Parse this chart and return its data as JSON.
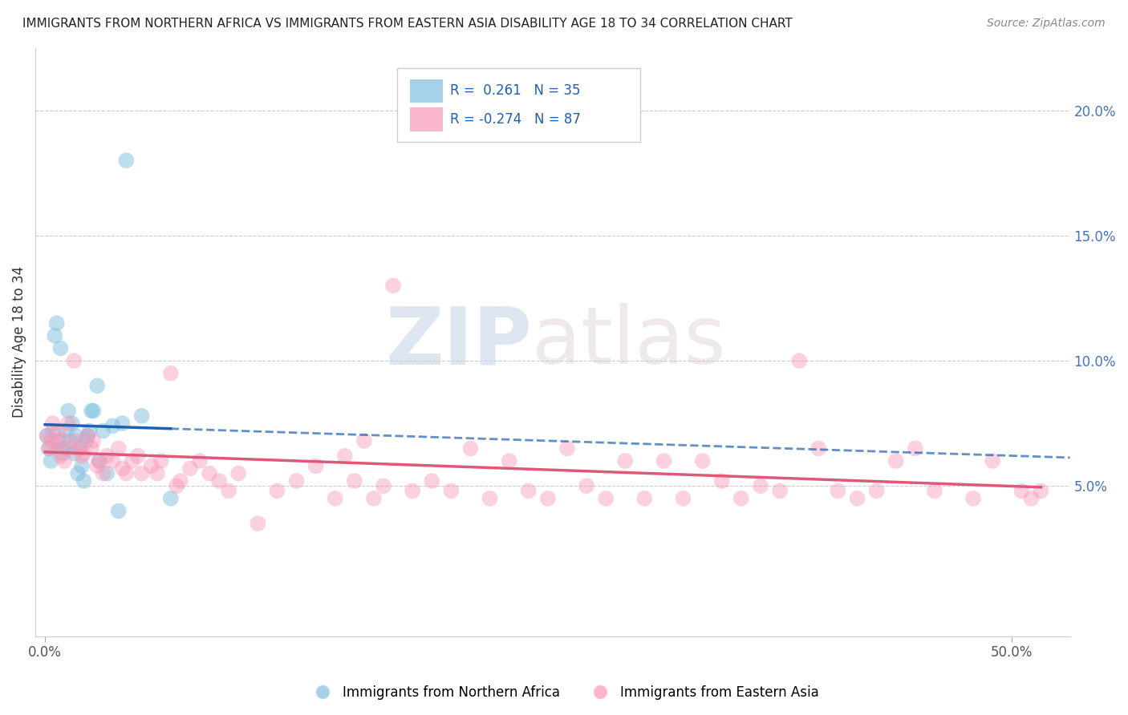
{
  "title": "IMMIGRANTS FROM NORTHERN AFRICA VS IMMIGRANTS FROM EASTERN ASIA DISABILITY AGE 18 TO 34 CORRELATION CHART",
  "source": "Source: ZipAtlas.com",
  "ylabel": "Disability Age 18 to 34",
  "xlabel_ticks": [
    "0.0%",
    "50.0%"
  ],
  "xlabel_vals": [
    0.0,
    0.5
  ],
  "ylabel_ticks": [
    "5.0%",
    "10.0%",
    "15.0%",
    "20.0%"
  ],
  "ylabel_vals": [
    0.05,
    0.1,
    0.15,
    0.2
  ],
  "xlim": [
    -0.005,
    0.53
  ],
  "ylim": [
    -0.01,
    0.225
  ],
  "blue_R": 0.261,
  "blue_N": 35,
  "pink_R": -0.274,
  "pink_N": 87,
  "legend_label_blue": "Immigrants from Northern Africa",
  "legend_label_pink": "Immigrants from Eastern Asia",
  "blue_color": "#7fbfdf",
  "pink_color": "#f898b8",
  "blue_line_color": "#2060b0",
  "pink_line_color": "#e05878",
  "watermark_zip": "ZIP",
  "watermark_atlas": "atlas",
  "blue_x": [
    0.001,
    0.002,
    0.003,
    0.004,
    0.005,
    0.006,
    0.007,
    0.008,
    0.009,
    0.01,
    0.011,
    0.012,
    0.013,
    0.014,
    0.015,
    0.016,
    0.017,
    0.018,
    0.019,
    0.02,
    0.021,
    0.022,
    0.023,
    0.024,
    0.025,
    0.027,
    0.028,
    0.03,
    0.032,
    0.035,
    0.038,
    0.04,
    0.042,
    0.05,
    0.065
  ],
  "blue_y": [
    0.07,
    0.065,
    0.06,
    0.072,
    0.11,
    0.115,
    0.068,
    0.105,
    0.063,
    0.065,
    0.072,
    0.08,
    0.068,
    0.075,
    0.063,
    0.07,
    0.055,
    0.065,
    0.058,
    0.052,
    0.068,
    0.07,
    0.072,
    0.08,
    0.08,
    0.09,
    0.06,
    0.072,
    0.055,
    0.074,
    0.04,
    0.075,
    0.18,
    0.078,
    0.045
  ],
  "pink_x": [
    0.001,
    0.002,
    0.003,
    0.004,
    0.005,
    0.006,
    0.007,
    0.008,
    0.009,
    0.01,
    0.012,
    0.013,
    0.015,
    0.016,
    0.018,
    0.019,
    0.02,
    0.022,
    0.024,
    0.025,
    0.027,
    0.028,
    0.03,
    0.032,
    0.035,
    0.038,
    0.04,
    0.042,
    0.045,
    0.048,
    0.05,
    0.055,
    0.058,
    0.06,
    0.065,
    0.068,
    0.07,
    0.075,
    0.08,
    0.085,
    0.09,
    0.095,
    0.1,
    0.11,
    0.12,
    0.13,
    0.14,
    0.15,
    0.155,
    0.16,
    0.165,
    0.17,
    0.175,
    0.18,
    0.19,
    0.2,
    0.21,
    0.22,
    0.23,
    0.24,
    0.25,
    0.26,
    0.27,
    0.28,
    0.29,
    0.3,
    0.31,
    0.32,
    0.33,
    0.34,
    0.35,
    0.36,
    0.37,
    0.38,
    0.39,
    0.4,
    0.41,
    0.42,
    0.43,
    0.44,
    0.45,
    0.46,
    0.48,
    0.49,
    0.505,
    0.51,
    0.515
  ],
  "pink_y": [
    0.07,
    0.065,
    0.068,
    0.075,
    0.068,
    0.065,
    0.072,
    0.062,
    0.068,
    0.06,
    0.075,
    0.065,
    0.1,
    0.068,
    0.065,
    0.062,
    0.063,
    0.07,
    0.065,
    0.068,
    0.058,
    0.06,
    0.055,
    0.062,
    0.06,
    0.065,
    0.057,
    0.055,
    0.06,
    0.062,
    0.055,
    0.058,
    0.055,
    0.06,
    0.095,
    0.05,
    0.052,
    0.057,
    0.06,
    0.055,
    0.052,
    0.048,
    0.055,
    0.035,
    0.048,
    0.052,
    0.058,
    0.045,
    0.062,
    0.052,
    0.068,
    0.045,
    0.05,
    0.13,
    0.048,
    0.052,
    0.048,
    0.065,
    0.045,
    0.06,
    0.048,
    0.045,
    0.065,
    0.05,
    0.045,
    0.06,
    0.045,
    0.06,
    0.045,
    0.06,
    0.052,
    0.045,
    0.05,
    0.048,
    0.1,
    0.065,
    0.048,
    0.045,
    0.048,
    0.06,
    0.065,
    0.048,
    0.045,
    0.06,
    0.048,
    0.045,
    0.048
  ]
}
